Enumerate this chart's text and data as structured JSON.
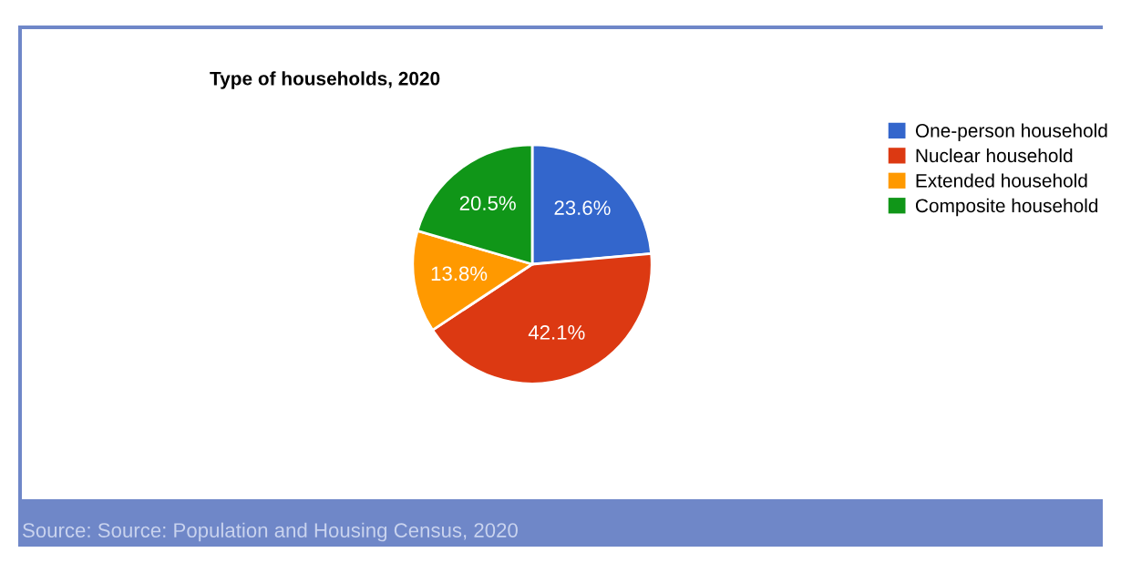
{
  "chart_data": {
    "type": "pie",
    "title": "Type of households, 2020",
    "categories": [
      "One-person household",
      "Nuclear household",
      "Extended household",
      "Composite household"
    ],
    "values": [
      23.6,
      42.1,
      13.8,
      20.5
    ],
    "colors": [
      "#3366cc",
      "#dc3912",
      "#ff9900",
      "#109618"
    ],
    "value_labels": [
      "23.6%",
      "42.1%",
      "13.8%",
      "20.5%"
    ],
    "legend": "right",
    "annotations": [
      "Source: Source: Population and Housing Census, 2020"
    ]
  }
}
